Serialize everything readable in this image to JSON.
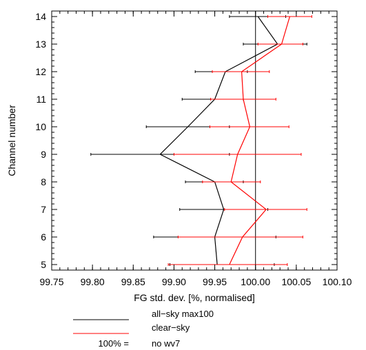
{
  "chart_data": {
    "type": "line",
    "orientation": "horizontal",
    "xlabel": "FG std. dev. [%, normalised]",
    "ylabel": "Channel number",
    "xlim": [
      99.75,
      100.1
    ],
    "ylim": [
      4.8,
      14.2
    ],
    "x_ticks": [
      "99.75",
      "99.80",
      "99.85",
      "99.90",
      "99.95",
      "100.00",
      "100.05",
      "100.10"
    ],
    "y_ticks": [
      "5",
      "6",
      "7",
      "8",
      "9",
      "10",
      "11",
      "12",
      "13",
      "14"
    ],
    "reference_line": 100.0,
    "series": [
      {
        "name": "all−sky max100",
        "color": "#000000",
        "channel": [
          5,
          6,
          7,
          8,
          9,
          10,
          11,
          12,
          13,
          14
        ],
        "x": [
          99.953,
          99.95,
          99.961,
          99.95,
          99.883,
          99.917,
          99.95,
          99.963,
          100.027,
          100.003
        ],
        "x_low": [
          99.895,
          99.875,
          99.907,
          99.914,
          99.798,
          99.866,
          99.91,
          99.926,
          99.985,
          99.968
        ],
        "x_high": [
          100.023,
          100.025,
          100.015,
          99.985,
          99.968,
          99.968,
          99.985,
          99.99,
          100.063,
          100.037
        ]
      },
      {
        "name": "clear−sky",
        "color": "#ff0000",
        "channel": [
          5,
          6,
          7,
          8,
          9,
          10,
          11,
          12,
          13,
          14
        ],
        "x": [
          99.968,
          99.984,
          100.013,
          99.97,
          99.978,
          99.993,
          99.985,
          99.983,
          100.032,
          100.042
        ],
        "x_low": [
          99.893,
          99.905,
          99.962,
          99.935,
          99.9,
          99.944,
          99.945,
          99.947,
          100.003,
          100.015
        ],
        "x_high": [
          100.039,
          100.058,
          100.063,
          100.006,
          100.056,
          100.041,
          100.025,
          100.017,
          100.058,
          100.069
        ]
      }
    ],
    "legend": {
      "placement": "bottom",
      "entries": [
        "all−sky max100",
        "clear−sky"
      ],
      "note_label": "100% =",
      "note_value": "no wv7"
    }
  }
}
